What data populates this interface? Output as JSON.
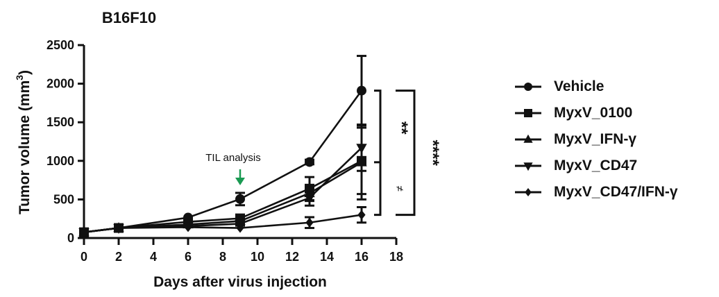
{
  "chart_data": {
    "type": "line",
    "title": "B16F10",
    "xlabel": "Days after virus injection",
    "ylabel": "Tumor volume (mm",
    "ylabel_superscript": "3",
    "ylabel_suffix": ")",
    "xlim": [
      0,
      18
    ],
    "ylim": [
      0,
      2500
    ],
    "xticks": [
      0,
      2,
      4,
      6,
      8,
      10,
      12,
      14,
      16,
      18
    ],
    "yticks": [
      0,
      500,
      1000,
      1500,
      2000,
      2500
    ],
    "grid": false,
    "legend_position": "right",
    "x": [
      0,
      2,
      6,
      9,
      13,
      16
    ],
    "series": [
      {
        "name": "Vehicle",
        "marker": "circle",
        "values": [
          75,
          130,
          265,
          505,
          985,
          1910
        ],
        "errors": [
          15,
          15,
          20,
          80,
          30,
          450
        ]
      },
      {
        "name": "MyxV_0100",
        "marker": "square",
        "values": [
          75,
          130,
          210,
          255,
          640,
          1000
        ],
        "errors": [
          15,
          15,
          20,
          30,
          150,
          430
        ]
      },
      {
        "name": "MyxV_IFN-γ",
        "marker": "triangle-up",
        "values": [
          75,
          130,
          175,
          220,
          580,
          980
        ],
        "errors": [
          15,
          15,
          20,
          25,
          100,
          480
        ]
      },
      {
        "name": "MyxV_CD47",
        "marker": "triangle-down",
        "values": [
          75,
          130,
          155,
          185,
          520,
          1170
        ],
        "errors": [
          15,
          15,
          20,
          25,
          100,
          300
        ]
      },
      {
        "name": "MyxV_CD47/IFN-γ",
        "marker": "diamond",
        "values": [
          75,
          130,
          140,
          130,
          200,
          300
        ],
        "errors": [
          15,
          15,
          15,
          15,
          70,
          100
        ]
      }
    ],
    "annotations": [
      {
        "text": "TIL analysis",
        "x": 9,
        "arrow_color": "#1a9a52"
      },
      {
        "text": "**",
        "type": "significance",
        "between": [
          "Vehicle",
          "MyxV_0100 group"
        ]
      },
      {
        "text": "≠",
        "type": "significance",
        "between": [
          "MyxV_0100 group",
          "MyxV_CD47/IFN-γ"
        ]
      },
      {
        "text": "****",
        "type": "significance",
        "between": [
          "Vehicle",
          "MyxV_CD47/IFN-γ"
        ]
      }
    ]
  },
  "labels": {
    "title": "B16F10",
    "xlabel": "Days after virus injection",
    "ylabel": "Tumor volume (mm",
    "ylabel_sup": "3",
    "ylabel_end": ")",
    "til": "TIL analysis",
    "sig_upper": "**",
    "sig_lower": "≠",
    "sig_outer": "****"
  },
  "colors": {
    "line": "#111111",
    "arrow": "#1a9a52"
  }
}
